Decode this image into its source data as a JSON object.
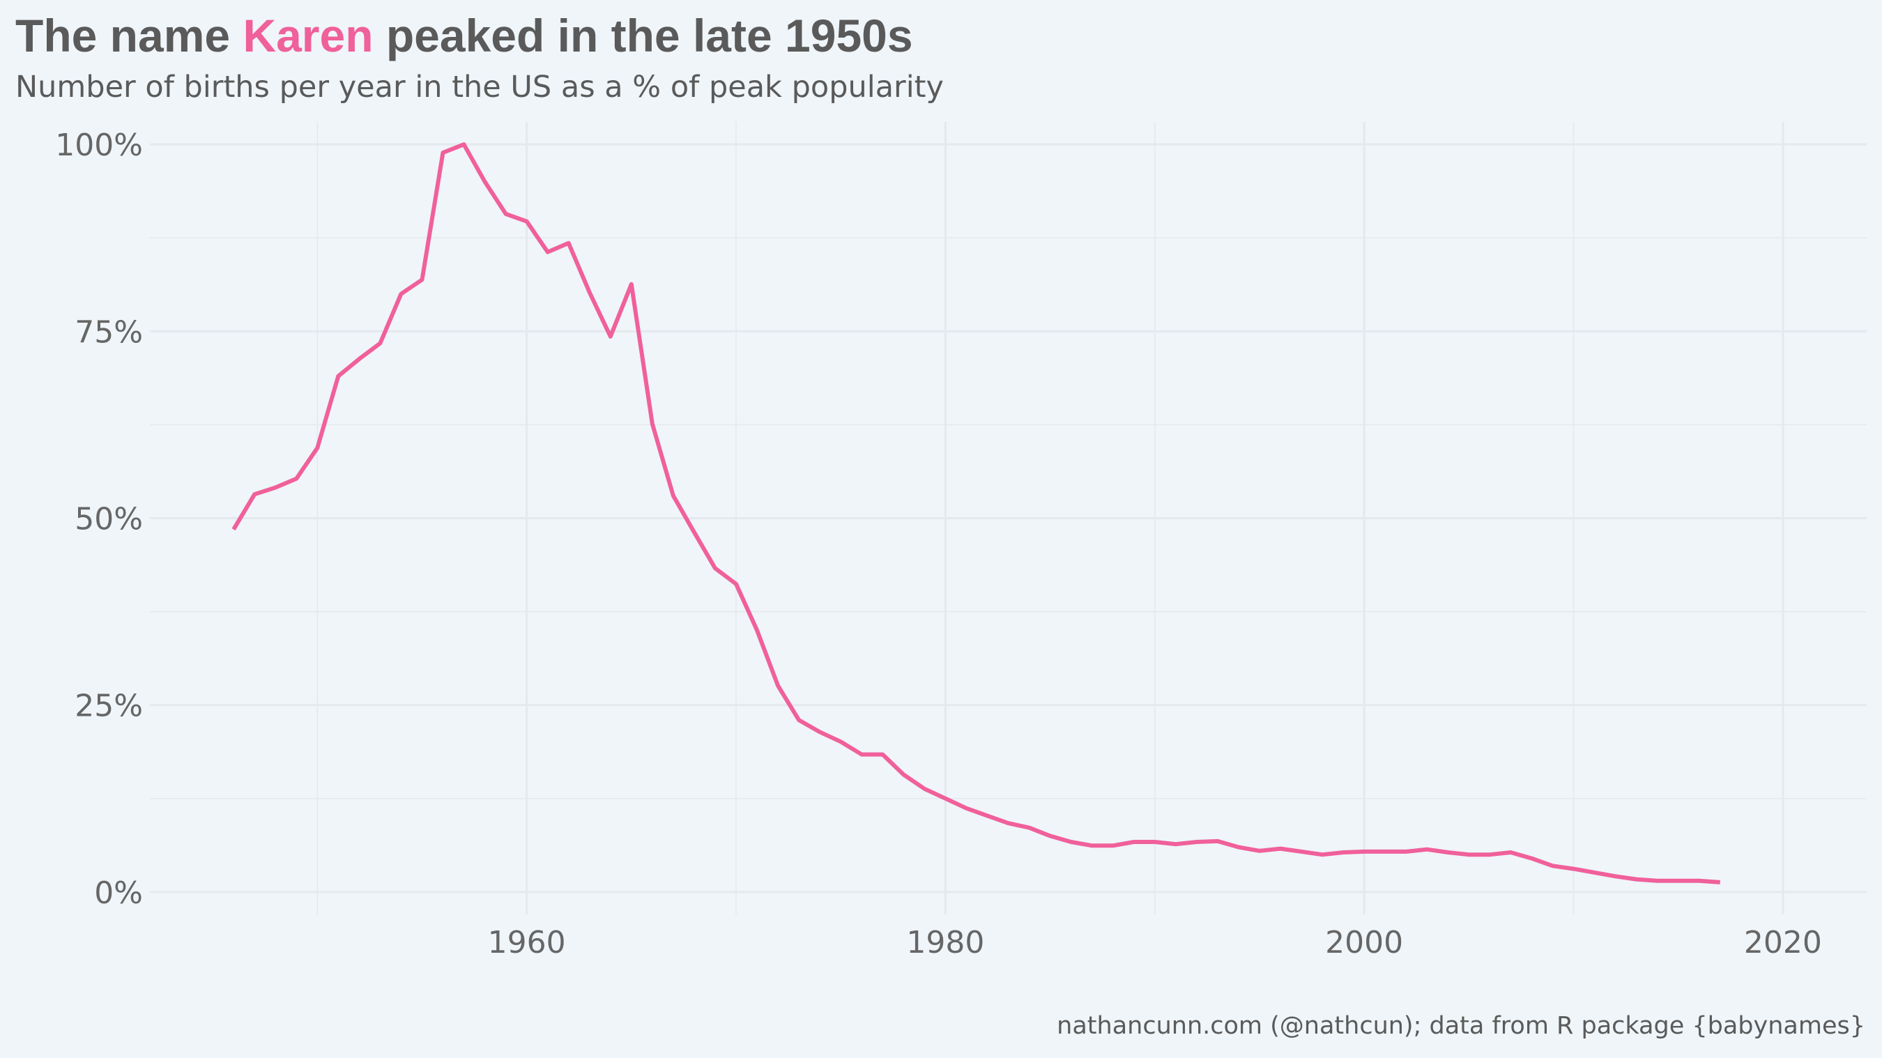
{
  "title": {
    "prefix": "The name ",
    "highlight": "Karen",
    "suffix": " peaked in the late 1950s"
  },
  "subtitle": "Number of births per year in the US as a % of peak popularity",
  "caption": "nathancunn.com (@nathcun); data from R package {babynames}",
  "colors": {
    "line": "#f0609a",
    "highlight": "#f0609a",
    "text": "#5a5a5a",
    "grid": "#e4e9ee",
    "background": "#eff5f9"
  },
  "chart_data": {
    "type": "line",
    "title": "The name Karen peaked in the late 1950s",
    "subtitle": "Number of births per year in the US as a % of peak popularity",
    "xlabel": "",
    "ylabel": "",
    "xlim": [
      1942,
      2024
    ],
    "ylim": [
      -3,
      103
    ],
    "x_ticks": [
      1960,
      1980,
      2000,
      2020
    ],
    "x_tick_labels": [
      "1960",
      "1980",
      "2000",
      "2020"
    ],
    "y_ticks": [
      0,
      25,
      50,
      75,
      100
    ],
    "y_tick_labels": [
      "0%",
      "25%",
      "50%",
      "75%",
      "100%"
    ],
    "grid": true,
    "legend": "none",
    "x": [
      1946,
      1947,
      1948,
      1949,
      1950,
      1951,
      1952,
      1953,
      1954,
      1955,
      1956,
      1957,
      1958,
      1959,
      1960,
      1961,
      1962,
      1963,
      1964,
      1965,
      1966,
      1967,
      1968,
      1969,
      1970,
      1971,
      1972,
      1973,
      1974,
      1975,
      1976,
      1977,
      1978,
      1979,
      1980,
      1981,
      1982,
      1983,
      1984,
      1985,
      1986,
      1987,
      1988,
      1989,
      1990,
      1991,
      1992,
      1993,
      1994,
      1995,
      1996,
      1997,
      1998,
      1999,
      2000,
      2001,
      2002,
      2003,
      2004,
      2005,
      2006,
      2007,
      2008,
      2009,
      2010,
      2011,
      2012,
      2013,
      2014,
      2015,
      2016,
      2017
    ],
    "y": [
      48.5,
      53.2,
      54.1,
      55.3,
      59.4,
      69.0,
      71.3,
      73.4,
      80.0,
      81.9,
      98.9,
      100.0,
      95.0,
      90.7,
      89.7,
      85.6,
      86.8,
      80.2,
      74.3,
      81.3,
      62.6,
      53.0,
      48.1,
      43.3,
      41.2,
      35.0,
      27.6,
      23.0,
      21.4,
      20.1,
      18.4,
      18.4,
      15.7,
      13.8,
      12.5,
      11.2,
      10.2,
      9.2,
      8.6,
      7.5,
      6.7,
      6.2,
      6.2,
      6.7,
      6.7,
      6.4,
      6.7,
      6.8,
      6.0,
      5.5,
      5.8,
      5.4,
      5.0,
      5.3,
      5.4,
      5.4,
      5.4,
      5.7,
      5.3,
      5.0,
      5.0,
      5.3,
      4.5,
      3.5,
      3.1,
      2.6,
      2.1,
      1.7,
      1.5,
      1.5,
      1.5,
      1.3
    ]
  }
}
